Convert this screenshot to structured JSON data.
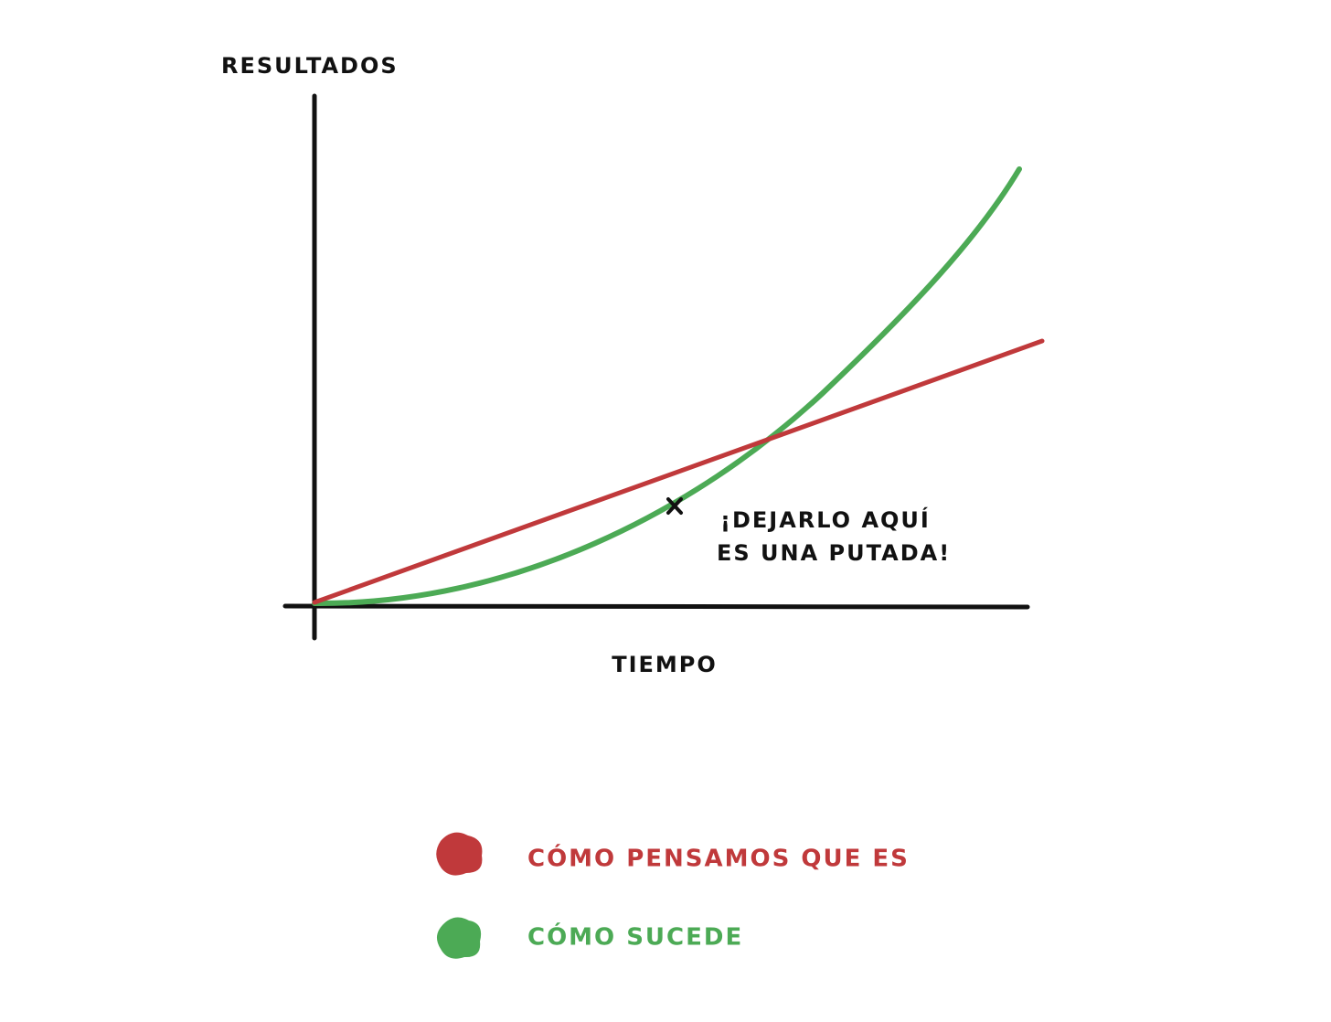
{
  "axes": {
    "y_label": "RESULTADOS",
    "x_label": "TIEMPO"
  },
  "annotation": {
    "lines": [
      "¡DEJARLO AQUÍ",
      "ES UNA PUTADA!"
    ]
  },
  "legend": [
    {
      "label": "CÓMO PENSAMOS QUE ES",
      "color": "#c0393b"
    },
    {
      "label": "CÓMO SUCEDE",
      "color": "#4caa55"
    }
  ]
}
